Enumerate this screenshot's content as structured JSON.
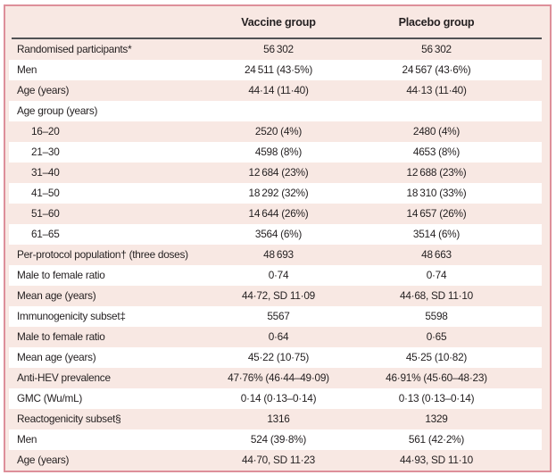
{
  "table": {
    "columns": [
      "",
      "Vaccine group",
      "Placebo group"
    ],
    "rows": [
      {
        "label": "Randomised participants*",
        "vaccine": "56 302",
        "placebo": "56 302",
        "indent": false
      },
      {
        "label": "Men",
        "vaccine": "24 511 (43·5%)",
        "placebo": "24 567 (43·6%)",
        "indent": false
      },
      {
        "label": "Age (years)",
        "vaccine": "44·14 (11·40)",
        "placebo": "44·13 (11·40)",
        "indent": false
      },
      {
        "label": "Age group (years)",
        "vaccine": "",
        "placebo": "",
        "indent": false
      },
      {
        "label": "16–20",
        "vaccine": "2520 (4%)",
        "placebo": "2480 (4%)",
        "indent": true
      },
      {
        "label": "21–30",
        "vaccine": "4598 (8%)",
        "placebo": "4653 (8%)",
        "indent": true
      },
      {
        "label": "31–40",
        "vaccine": "12 684 (23%)",
        "placebo": "12 688 (23%)",
        "indent": true
      },
      {
        "label": "41–50",
        "vaccine": "18 292 (32%)",
        "placebo": "18 310 (33%)",
        "indent": true
      },
      {
        "label": "51–60",
        "vaccine": "14 644 (26%)",
        "placebo": "14 657 (26%)",
        "indent": true
      },
      {
        "label": "61–65",
        "vaccine": "3564 (6%)",
        "placebo": "3514 (6%)",
        "indent": true
      },
      {
        "label": "Per-protocol population† (three doses)",
        "vaccine": "48 693",
        "placebo": "48 663",
        "indent": false
      },
      {
        "label": "Male to female ratio",
        "vaccine": "0·74",
        "placebo": "0·74",
        "indent": false
      },
      {
        "label": "Mean age (years)",
        "vaccine": "44·72, SD 11·09",
        "placebo": "44·68, SD 11·10",
        "indent": false
      },
      {
        "label": "Immunogenicity subset‡",
        "vaccine": "5567",
        "placebo": "5598",
        "indent": false
      },
      {
        "label": "Male to female ratio",
        "vaccine": "0·64",
        "placebo": "0·65",
        "indent": false
      },
      {
        "label": "Mean age (years)",
        "vaccine": "45·22 (10·75)",
        "placebo": "45·25 (10·82)",
        "indent": false
      },
      {
        "label": "Anti-HEV prevalence",
        "vaccine": "47·76% (46·44–49·09)",
        "placebo": "46·91% (45·60–48·23)",
        "indent": false
      },
      {
        "label": "GMC (Wu/mL)",
        "vaccine": "0·14 (0·13–0·14)",
        "placebo": "0·13 (0·13–0·14)",
        "indent": false
      },
      {
        "label": "Reactogenicity subset§",
        "vaccine": "1316",
        "placebo": "1329",
        "indent": false
      },
      {
        "label": "Men",
        "vaccine": "524 (39·8%)",
        "placebo": "561 (42·2%)",
        "indent": false
      },
      {
        "label": "Age (years)",
        "vaccine": "44·70, SD 11·23",
        "placebo": "44·93, SD 11·10",
        "indent": false
      }
    ]
  },
  "colors": {
    "bg": "#f8e8e3",
    "stripe": "#ffffff",
    "border": "#dd8f9a",
    "rule": "#515254",
    "text": "#231f20"
  }
}
